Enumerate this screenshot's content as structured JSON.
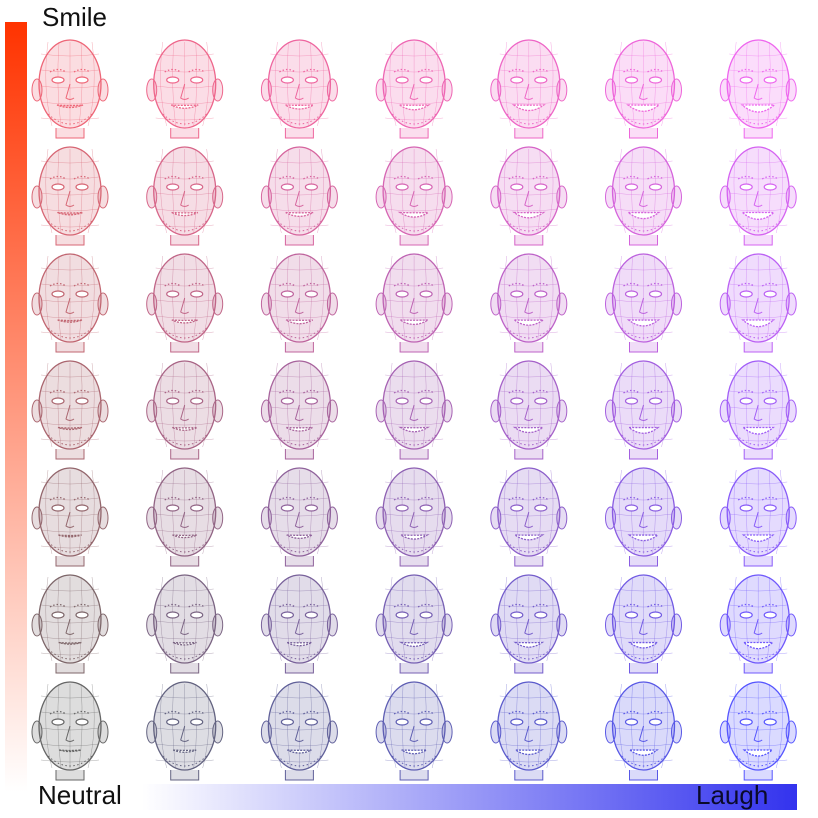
{
  "labels": {
    "top": "Smile",
    "bottom_left": "Neutral",
    "bottom_right": "Laugh"
  },
  "colors": {
    "smile": "#ff3300",
    "neutral": "#777777",
    "laugh": "#3333ee",
    "grid_corner_top_left": "#ee6677",
    "grid_corner_top_right": "#ee66ee",
    "grid_corner_bottom_left": "#666666",
    "grid_corner_bottom_right": "#5555ff"
  },
  "grid": {
    "rows": 7,
    "cols": 7,
    "row_axis": "smile intensity increases upward",
    "col_axis": "laugh intensity increases rightward"
  },
  "icons": {
    "face": "wireframe-face-icon"
  }
}
